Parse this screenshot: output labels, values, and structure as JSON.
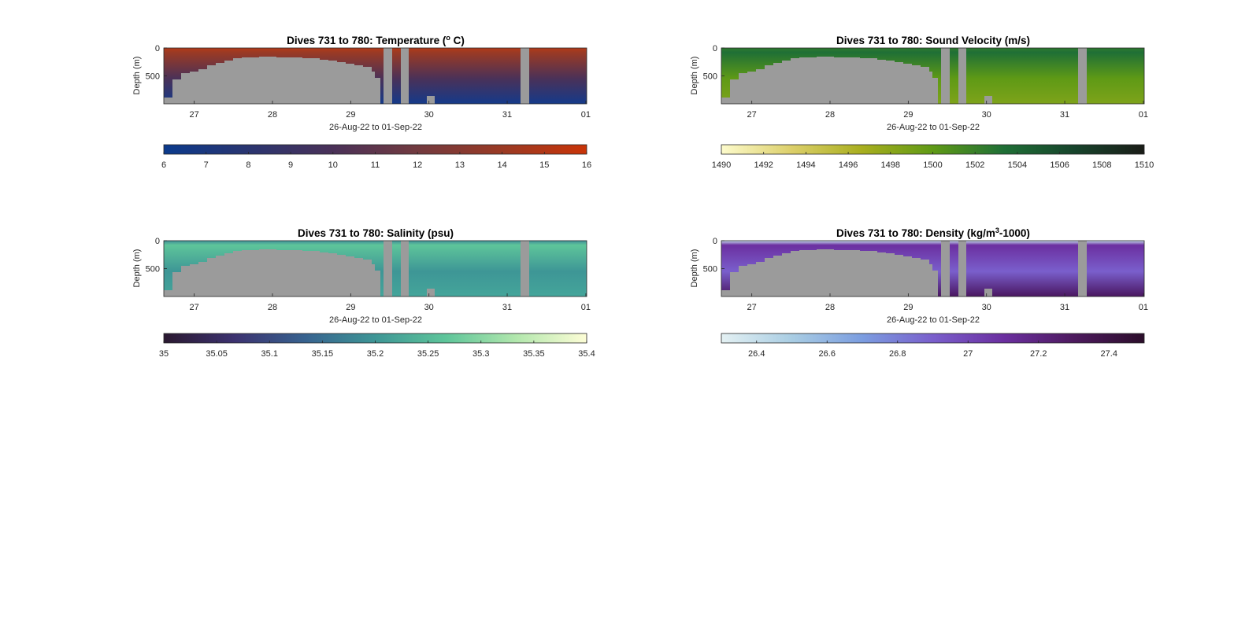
{
  "chart_data": [
    {
      "type": "heatmap",
      "title_main": "Dives 731 to 780: Temperature (",
      "title_sup": "o",
      "title_end": " C)",
      "xlabel": "26-Aug-22 to 01-Sep-22",
      "ylabel": "Depth (m)",
      "x_ticks": [
        "27",
        "28",
        "29",
        "30",
        "31",
        "01"
      ],
      "y_ticks": [
        "0",
        "500"
      ],
      "ylim": [
        0,
        1000
      ],
      "colorbar_ticks": [
        "6",
        "7",
        "8",
        "9",
        "10",
        "11",
        "12",
        "13",
        "14",
        "15",
        "16"
      ],
      "colorbar_range": [
        6,
        16
      ],
      "colormap": [
        "#0b3a8c",
        "#2a3570",
        "#4a3158",
        "#723a3f",
        "#9a3a24",
        "#c93408"
      ],
      "surface_color": "#b43a1a",
      "bottom_color": "#153a8a",
      "no_data_color": "#9b9b9b"
    },
    {
      "type": "heatmap",
      "title_main": "Dives 731 to 780: Sound Velocity (m/s)",
      "title_sup": "",
      "title_end": "",
      "xlabel": "26-Aug-22 to 01-Sep-22",
      "ylabel": "Depth (m)",
      "x_ticks": [
        "27",
        "28",
        "29",
        "30",
        "31",
        "01"
      ],
      "y_ticks": [
        "0",
        "500"
      ],
      "ylim": [
        0,
        1000
      ],
      "colorbar_ticks": [
        "1490",
        "1492",
        "1494",
        "1496",
        "1498",
        "1500",
        "1502",
        "1504",
        "1506",
        "1508",
        "1510"
      ],
      "colorbar_range": [
        1490,
        1510
      ],
      "colormap": [
        "#fdfbcc",
        "#dccf6a",
        "#a8ae1e",
        "#5f9a16",
        "#1f6f36",
        "#17442c",
        "#1a1c17"
      ],
      "surface_color": "#2e7a2e",
      "bottom_color": "#7ea31a",
      "no_data_color": "#9b9b9b"
    },
    {
      "type": "heatmap",
      "title_main": "Dives 731 to 780: Salinity (psu)",
      "title_sup": "",
      "title_end": "",
      "xlabel": "26-Aug-22 to 01-Sep-22",
      "ylabel": "Depth (m)",
      "x_ticks": [
        "27",
        "28",
        "29",
        "30",
        "31",
        "01"
      ],
      "y_ticks": [
        "0",
        "500"
      ],
      "ylim": [
        0,
        1000
      ],
      "colorbar_ticks": [
        "35",
        "35.05",
        "35.1",
        "35.15",
        "35.2",
        "35.25",
        "35.3",
        "35.35",
        "35.4"
      ],
      "colorbar_range": [
        35,
        35.4
      ],
      "colormap": [
        "#2a1830",
        "#3c3270",
        "#37628f",
        "#3e9696",
        "#5ec59a",
        "#b2e7ad",
        "#fdfdd6"
      ],
      "surface_color": "#3f8f98",
      "bottom_color": "#44a59a",
      "no_data_color": "#9b9b9b"
    },
    {
      "type": "heatmap",
      "title_main": "Dives 731 to 780: Density (kg/m",
      "title_sup": "3",
      "title_end": "-1000)",
      "xlabel": "26-Aug-22 to 01-Sep-22",
      "ylabel": "Depth (m)",
      "x_ticks": [
        "27",
        "28",
        "29",
        "30",
        "31",
        "01"
      ],
      "y_ticks": [
        "0",
        "500"
      ],
      "ylim": [
        0,
        1000
      ],
      "colorbar_ticks": [
        "26.4",
        "26.6",
        "26.8",
        "27",
        "27.2",
        "27.4"
      ],
      "colorbar_range": [
        26.3,
        27.5
      ],
      "colormap": [
        "#e4f1f3",
        "#a9cde3",
        "#7b9de0",
        "#7a5fcc",
        "#6b2fa0",
        "#4d1a5e",
        "#2b0d2a"
      ],
      "surface_color": "#c7ddef",
      "bottom_color": "#4a1660",
      "no_data_color": "#9b9b9b"
    }
  ]
}
